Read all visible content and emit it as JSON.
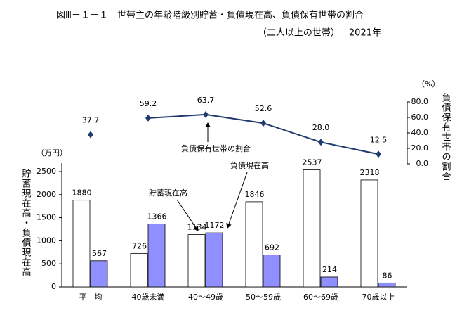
{
  "chart_data": {
    "type": "bar",
    "title": "図Ⅲ－１－１　世帯主の年齢階級別貯蓄・負債現在高、負債保有世帯の割合",
    "subtitle": "（二人以上の世帯）－2021年－",
    "y_unit": "（万円）",
    "y2_unit": "（%）",
    "y_label": "貯蓄現在高・負債現在高",
    "y2_label": "負債保有世帯の割合",
    "categories": [
      "平　均",
      "40歳未満",
      "40～49歳",
      "50～59歳",
      "60～69歳",
      "70歳以上"
    ],
    "series": [
      {
        "name": "貯蓄現在高",
        "type": "bar",
        "color": "#ffffff",
        "values": [
          1880,
          726,
          1134,
          1846,
          2537,
          2318
        ]
      },
      {
        "name": "負債現在高",
        "type": "bar",
        "color": "#8f8fff",
        "values": [
          567,
          1366,
          1172,
          692,
          214,
          86
        ]
      },
      {
        "name": "負債保有世帯の割合",
        "type": "line",
        "axis": "y2",
        "color": "#1f3a6e",
        "values": [
          37.7,
          59.2,
          63.7,
          52.6,
          28.0,
          12.5
        ],
        "value_labels": [
          "37.7",
          "59.2",
          "63.7",
          "52.6",
          "28.0",
          "12.5"
        ]
      }
    ],
    "ylim": [
      0,
      2500
    ],
    "yticks": [
      0,
      500,
      1000,
      1500,
      2000,
      2500
    ],
    "y2lim": [
      0,
      80
    ],
    "y2ticks": [
      {
        "value": 0,
        "label": "0.0"
      },
      {
        "value": 20,
        "label": "20.0"
      },
      {
        "value": 40,
        "label": "40.0"
      },
      {
        "value": 60,
        "label": "60.0"
      },
      {
        "value": 80,
        "label": "80.0"
      }
    ]
  }
}
